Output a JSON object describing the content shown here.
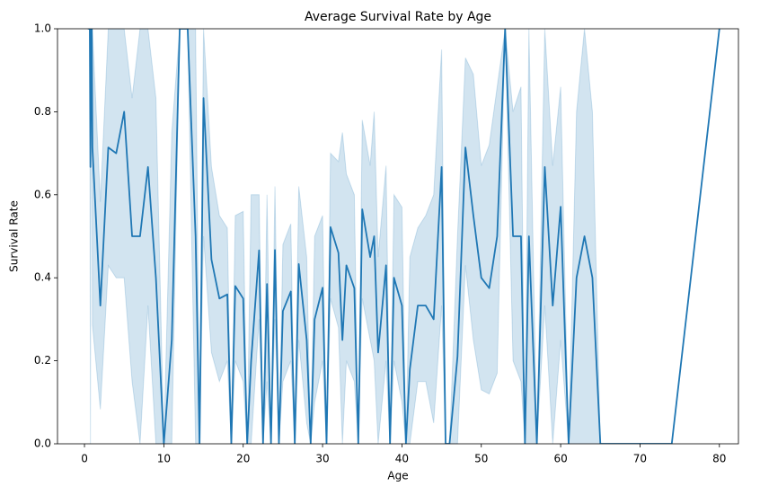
{
  "chart_data": {
    "type": "line",
    "title": "Average Survival Rate by Age",
    "x_label": "Age",
    "y_label": "Survival Rate",
    "x": [
      0.42,
      0.67,
      0.75,
      0.83,
      0.92,
      1,
      2,
      3,
      4,
      5,
      6,
      7,
      8,
      9,
      10,
      11,
      12,
      13,
      14,
      14.5,
      15,
      16,
      17,
      18,
      18.5,
      19,
      20,
      20.5,
      21,
      22,
      22.5,
      23,
      23.5,
      24,
      24.5,
      25,
      26,
      26.5,
      27,
      28,
      28.5,
      29,
      30,
      30.5,
      31,
      32,
      32.5,
      33,
      34,
      34.5,
      35,
      36,
      36.5,
      37,
      38,
      38.5,
      39,
      40,
      40.5,
      41,
      42,
      43,
      44,
      45,
      45.5,
      46,
      47,
      48,
      49,
      50,
      51,
      52,
      53,
      54,
      55,
      55.5,
      56,
      57,
      58,
      59,
      60,
      61,
      62,
      63,
      64,
      65,
      66,
      70,
      70.5,
      71,
      74,
      80
    ],
    "series": [
      {
        "name": "Survival Rate",
        "color": "#1f77b4",
        "values": [
          1,
          1,
          0.667,
          1,
          1,
          0.714,
          0.333,
          0.714,
          0.7,
          0.8,
          0.5,
          0.5,
          0.667,
          0.4,
          0,
          0.25,
          1,
          1,
          0.5,
          0,
          0.833,
          0.444,
          0.35,
          0.36,
          0,
          0.38,
          0.35,
          0,
          0.2,
          0.466,
          0,
          0.385,
          0,
          0.467,
          0,
          0.32,
          0.367,
          0,
          0.433,
          0.25,
          0,
          0.3,
          0.376,
          0,
          0.522,
          0.46,
          0.25,
          0.43,
          0.375,
          0,
          0.565,
          0.45,
          0.5,
          0.22,
          0.43,
          0,
          0.4,
          0.333,
          0,
          0.18,
          0.333,
          0.333,
          0.3,
          0.667,
          0,
          0,
          0.21,
          0.714,
          0.55,
          0.4,
          0.375,
          0.5,
          1,
          0.5,
          0.5,
          0,
          0.5,
          0,
          0.667,
          0.333,
          0.571,
          0,
          0.4,
          0.5,
          0.4,
          0,
          0,
          0,
          0,
          0,
          0,
          1
        ],
        "ci_lower": [
          1,
          1,
          0,
          1,
          1,
          0.286,
          0.083,
          0.429,
          0.4,
          0.4,
          0.15,
          0,
          0.333,
          0,
          0,
          0,
          1,
          1,
          0,
          0,
          0.5,
          0.22,
          0.15,
          0.2,
          0,
          0.2,
          0.15,
          0,
          0,
          0.3,
          0,
          0.15,
          0,
          0.3,
          0,
          0.15,
          0.2,
          0,
          0.25,
          0.05,
          0,
          0.1,
          0.2,
          0,
          0.35,
          0.28,
          0,
          0.2,
          0.15,
          0,
          0.35,
          0.25,
          0.2,
          0,
          0.2,
          0,
          0.2,
          0.1,
          0,
          0,
          0.15,
          0.15,
          0.05,
          0.333,
          0,
          0,
          0,
          0.43,
          0.25,
          0.13,
          0.12,
          0.17,
          1,
          0.2,
          0.15,
          0,
          0,
          0,
          0.333,
          0,
          0.25,
          0,
          0,
          0,
          0,
          0,
          0,
          0,
          0,
          0,
          0,
          1
        ],
        "ci_upper": [
          1,
          1,
          1,
          1,
          1,
          1,
          0.583,
          1,
          1,
          1,
          0.833,
          1,
          1,
          0.833,
          0,
          0.75,
          1,
          1,
          1,
          0,
          1,
          0.667,
          0.55,
          0.52,
          0,
          0.55,
          0.56,
          0,
          0.6,
          0.6,
          0,
          0.6,
          0,
          0.62,
          0,
          0.48,
          0.53,
          0,
          0.62,
          0.45,
          0,
          0.5,
          0.55,
          0,
          0.7,
          0.68,
          0.75,
          0.65,
          0.6,
          0,
          0.78,
          0.67,
          0.8,
          0.45,
          0.67,
          0,
          0.6,
          0.57,
          0,
          0.45,
          0.52,
          0.55,
          0.6,
          0.95,
          0,
          0,
          0.5,
          0.93,
          0.89,
          0.67,
          0.72,
          0.86,
          1,
          0.8,
          0.86,
          0,
          1,
          0,
          1,
          0.67,
          0.86,
          0,
          0.8,
          1,
          0.8,
          0,
          0,
          0,
          0,
          0,
          0,
          1
        ]
      }
    ],
    "xlim": [
      -3.4,
      82.4
    ],
    "ylim": [
      0,
      1
    ],
    "xticks": [
      0,
      10,
      20,
      30,
      40,
      50,
      60,
      70,
      80
    ],
    "yticks": [
      {
        "value": 0,
        "label": "0.0"
      },
      0.2,
      0.4,
      0.6,
      0.8,
      {
        "value": 1,
        "label": "1.0"
      }
    ]
  }
}
